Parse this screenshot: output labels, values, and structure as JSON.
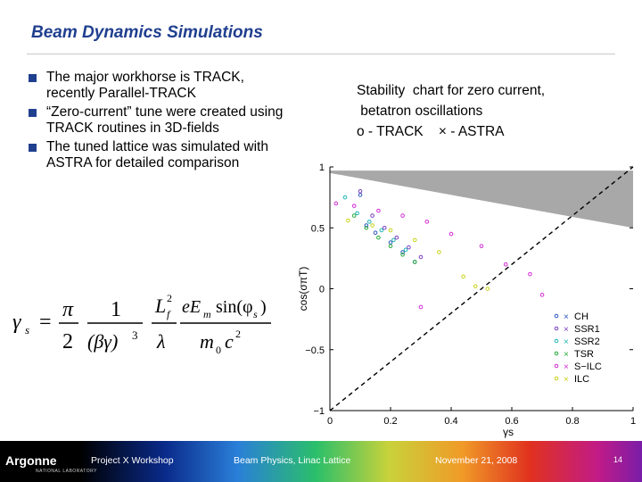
{
  "slide": {
    "title": "Beam Dynamics Simulations",
    "bullets": [
      "The major workhorse is TRACK, recently Parallel-TRACK",
      "“Zero-current” tune were created using TRACK routines in 3D-fields",
      "The tuned lattice was simulated with ASTRA for detailed comparison"
    ],
    "stability_title_lines": [
      "Stability  chart for zero current,",
      " betatron oscillations",
      "o - TRACK    × - ASTRA"
    ],
    "accent_color": "#1f3f8f"
  },
  "formula": {
    "lhs": "γ",
    "lhs_sub": "s",
    "pi": "π",
    "one": "1",
    "two": "2",
    "beta_gamma": "(βγ)",
    "cube": "3",
    "L": "L",
    "L_sup": "2",
    "L_sub": "f",
    "lambda": "λ",
    "eE": "eE",
    "eE_sub": "m",
    "sin": "sin(φ",
    "sin_sub": "s",
    "sin_close": ")",
    "m0": "m",
    "m0_sub": "0",
    "c": "c",
    "c_sup": "2"
  },
  "chart_data": {
    "type": "scatter",
    "xlabel": "γs",
    "ylabel": "cos(σπT)",
    "xlim": [
      0,
      1
    ],
    "ylim": [
      -1,
      1
    ],
    "x_ticks": [
      "0",
      "0.2",
      "0.4",
      "0.6",
      "0.8",
      "1"
    ],
    "y_ticks": [
      "1",
      "0.5",
      "0",
      "−0.5",
      "−1"
    ],
    "x_tick_values": [
      0,
      0.2,
      0.4,
      0.6,
      0.8,
      1
    ],
    "y_tick_values": [
      1,
      0.5,
      0,
      -0.5,
      -1
    ],
    "unstable_region": [
      [
        0,
        0.97
      ],
      [
        1,
        0.97
      ],
      [
        1,
        0.5
      ],
      [
        0,
        0.95
      ]
    ],
    "diagonal_line": [
      [
        0,
        -1
      ],
      [
        1,
        1
      ]
    ],
    "legend_position": "bottom-right",
    "series": [
      {
        "name": "CH",
        "color": "#2b55c4",
        "points": [
          [
            0.1,
            0.77
          ],
          [
            0.12,
            0.52
          ],
          [
            0.15,
            0.46
          ],
          [
            0.2,
            0.38
          ],
          [
            0.24,
            0.3
          ],
          [
            0.28,
            0.22
          ]
        ]
      },
      {
        "name": "SSR1",
        "color": "#7a3fc2",
        "points": [
          [
            0.1,
            0.8
          ],
          [
            0.14,
            0.6
          ],
          [
            0.18,
            0.5
          ],
          [
            0.22,
            0.42
          ],
          [
            0.26,
            0.34
          ],
          [
            0.3,
            0.26
          ]
        ]
      },
      {
        "name": "SSR2",
        "color": "#1eb4b4",
        "points": [
          [
            0.05,
            0.75
          ],
          [
            0.09,
            0.62
          ],
          [
            0.13,
            0.55
          ],
          [
            0.17,
            0.48
          ],
          [
            0.21,
            0.4
          ],
          [
            0.25,
            0.32
          ]
        ]
      },
      {
        "name": "TSR",
        "color": "#24a83a",
        "points": [
          [
            0.08,
            0.6
          ],
          [
            0.12,
            0.5
          ],
          [
            0.16,
            0.42
          ],
          [
            0.2,
            0.35
          ],
          [
            0.24,
            0.28
          ],
          [
            0.28,
            0.22
          ]
        ]
      },
      {
        "name": "S−ILC",
        "color": "#d42ad4",
        "points": [
          [
            0.02,
            0.7
          ],
          [
            0.08,
            0.68
          ],
          [
            0.16,
            0.64
          ],
          [
            0.24,
            0.6
          ],
          [
            0.32,
            0.55
          ],
          [
            0.4,
            0.45
          ],
          [
            0.5,
            0.35
          ],
          [
            0.58,
            0.2
          ],
          [
            0.66,
            0.12
          ],
          [
            0.7,
            -0.05
          ],
          [
            0.3,
            -0.15
          ]
        ]
      },
      {
        "name": "ILC",
        "color": "#c8d21a",
        "points": [
          [
            0.06,
            0.56
          ],
          [
            0.14,
            0.52
          ],
          [
            0.2,
            0.48
          ],
          [
            0.28,
            0.4
          ],
          [
            0.36,
            0.3
          ],
          [
            0.44,
            0.1
          ],
          [
            0.48,
            0.02
          ],
          [
            0.52,
            0.0
          ]
        ]
      }
    ]
  },
  "footer": {
    "logo": "Argonne",
    "logo_sub": "NATIONAL LABORATORY",
    "workshop": "Project X Workshop",
    "topic": "Beam Physics, Linac Lattice",
    "date": "November 21, 2008",
    "page": "14"
  }
}
